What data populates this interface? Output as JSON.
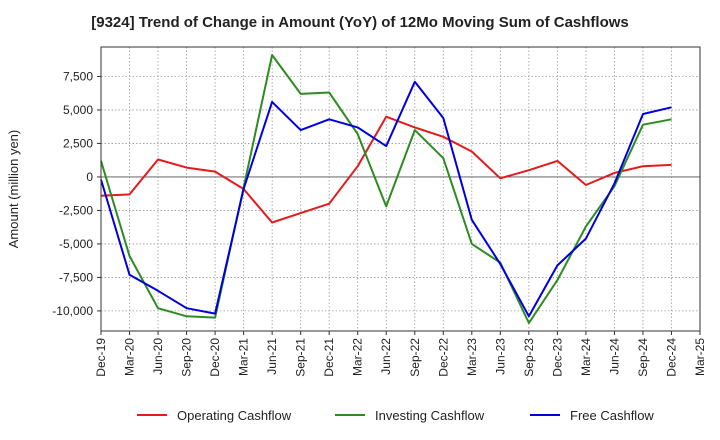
{
  "chart_data": {
    "type": "line",
    "title": "[9324]  Trend of Change in Amount (YoY) of 12Mo Moving Sum of Cashflows",
    "xlabel": "",
    "ylabel": "Amount (million yen)",
    "ylim": [
      -11500,
      9700
    ],
    "yticks": [
      7500,
      5000,
      2500,
      0,
      -2500,
      -5000,
      -7500,
      -10000
    ],
    "ytick_labels": [
      "7,500",
      "5,000",
      "2,500",
      "0",
      "-2,500",
      "-5,000",
      "-7,500",
      "-10,000"
    ],
    "categories": [
      "Dec-19",
      "Mar-20",
      "Jun-20",
      "Sep-20",
      "Dec-20",
      "Mar-21",
      "Jun-21",
      "Sep-21",
      "Dec-21",
      "Mar-22",
      "Jun-22",
      "Sep-22",
      "Dec-22",
      "Mar-23",
      "Jun-23",
      "Sep-23",
      "Dec-23",
      "Mar-24",
      "Jun-24",
      "Sep-24",
      "Dec-24",
      "Mar-25"
    ],
    "grid": true,
    "legend": "bottom",
    "series": [
      {
        "name": "Operating Cashflow",
        "color": "#e41a1c",
        "values": [
          -1400,
          -1300,
          1300,
          700,
          400,
          -900,
          -3400,
          -2700,
          -2000,
          800,
          4500,
          3700,
          3000,
          1900,
          -100,
          500,
          1200,
          -600,
          300,
          800,
          900,
          null
        ]
      },
      {
        "name": "Investing Cashflow",
        "color": "#2e8b22",
        "values": [
          1200,
          -5900,
          -9800,
          -10400,
          -10500,
          -800,
          9100,
          6200,
          6300,
          3200,
          -2200,
          3500,
          1400,
          -5000,
          -6400,
          -10900,
          -7700,
          -3700,
          -700,
          3900,
          4300,
          null
        ]
      },
      {
        "name": "Free Cashflow",
        "color": "#0000dd",
        "values": [
          -200,
          -7300,
          -8500,
          -9800,
          -10200,
          -900,
          5600,
          3500,
          4300,
          3700,
          2300,
          7100,
          4400,
          -3200,
          -6500,
          -10400,
          -6600,
          -4600,
          -500,
          4700,
          5200,
          null
        ]
      }
    ]
  }
}
